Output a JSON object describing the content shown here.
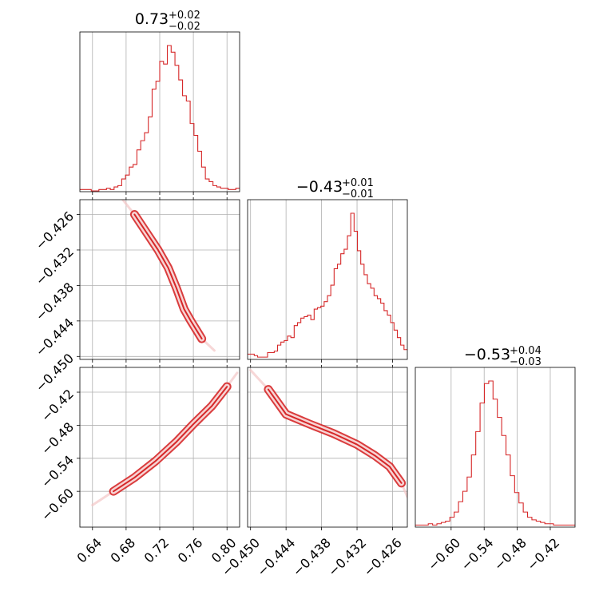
{
  "chart_data": {
    "type": "corner",
    "color": "#d62728",
    "grid": true,
    "parameters": [
      {
        "title": {
          "median": "0.73",
          "plus": "+0.02",
          "minus": "−0.02"
        }
      },
      {
        "title": {
          "median": "−0.43",
          "plus": "+0.01",
          "minus": "−0.01"
        }
      },
      {
        "title": {
          "median": "−0.53",
          "plus": "+0.04",
          "minus": "−0.03"
        }
      }
    ],
    "axes": {
      "x0": {
        "range": [
          0.625,
          0.815
        ],
        "ticks": [
          0.64,
          0.68,
          0.72,
          0.76,
          0.8
        ],
        "tick_labels": [
          "0.64",
          "0.68",
          "0.72",
          "0.76",
          "0.80"
        ]
      },
      "x1": {
        "range": [
          -0.4505,
          -0.4235
        ],
        "ticks": [
          -0.45,
          -0.444,
          -0.438,
          -0.432,
          -0.426
        ],
        "tick_labels": [
          "−0.450",
          "−0.444",
          "−0.438",
          "−0.432",
          "−0.426"
        ]
      },
      "x2": {
        "range": [
          -0.665,
          -0.375
        ],
        "ticks": [
          -0.6,
          -0.54,
          -0.48,
          -0.42
        ],
        "tick_labels": [
          "−0.60",
          "−0.54",
          "−0.48",
          "−0.42"
        ]
      },
      "y1": {
        "range": [
          -0.4505,
          -0.4235
        ],
        "ticks": [
          -0.426,
          -0.432,
          -0.438,
          -0.444,
          -0.45
        ],
        "tick_labels": [
          "−0.426",
          "−0.432",
          "−0.438",
          "−0.444",
          "−0.450"
        ]
      },
      "y2": {
        "range": [
          -0.665,
          -0.375
        ],
        "ticks": [
          -0.42,
          -0.48,
          -0.54,
          -0.6
        ],
        "tick_labels": [
          "−0.42",
          "−0.48",
          "−0.54",
          "−0.60"
        ]
      }
    },
    "histograms": [
      {
        "param": 0,
        "bins": [
          0.625,
          0.815
        ],
        "counts": [
          1,
          1,
          1,
          0,
          0,
          1,
          1,
          2,
          1,
          3,
          4,
          9,
          12,
          18,
          20,
          31,
          38,
          44,
          56,
          77,
          83,
          98,
          96,
          110,
          105,
          95,
          84,
          72,
          68,
          51,
          42,
          30,
          18,
          9,
          7,
          4,
          3,
          2,
          2,
          1,
          1,
          2
        ]
      },
      {
        "param": 1,
        "bins": [
          -0.4505,
          -0.4235
        ],
        "counts": [
          3,
          3,
          2,
          1,
          1,
          1,
          4,
          4,
          5,
          9,
          11,
          12,
          15,
          14,
          22,
          24,
          27,
          28,
          29,
          26,
          33,
          34,
          35,
          38,
          42,
          49,
          60,
          63,
          70,
          73,
          82,
          97,
          85,
          72,
          63,
          56,
          50,
          47,
          42,
          40,
          37,
          32,
          29,
          24,
          19,
          14,
          9,
          6
        ]
      },
      {
        "param": 2,
        "bins": [
          -0.665,
          -0.375
        ],
        "counts": [
          1,
          1,
          1,
          2,
          1,
          2,
          3,
          4,
          7,
          11,
          19,
          27,
          38,
          55,
          73,
          95,
          110,
          112,
          98,
          84,
          70,
          55,
          39,
          26,
          18,
          11,
          7,
          5,
          4,
          3,
          2,
          2,
          1,
          1,
          1,
          1,
          1
        ]
      }
    ],
    "pairs": [
      {
        "x_param": 0,
        "y_param": 1,
        "ridge": [
          [
            0.676,
            -0.4235
          ],
          [
            0.69,
            -0.426
          ],
          [
            0.704,
            -0.429
          ],
          [
            0.718,
            -0.432
          ],
          [
            0.73,
            -0.435
          ],
          [
            0.74,
            -0.4385
          ],
          [
            0.749,
            -0.442
          ],
          [
            0.757,
            -0.444
          ],
          [
            0.77,
            -0.447
          ],
          [
            0.785,
            -0.449
          ]
        ]
      },
      {
        "x_param": 0,
        "y_param": 2,
        "ridge": [
          [
            0.64,
            -0.625
          ],
          [
            0.665,
            -0.6
          ],
          [
            0.69,
            -0.575
          ],
          [
            0.715,
            -0.545
          ],
          [
            0.74,
            -0.51
          ],
          [
            0.76,
            -0.478
          ],
          [
            0.782,
            -0.445
          ],
          [
            0.8,
            -0.41
          ],
          [
            0.812,
            -0.385
          ]
        ]
      },
      {
        "x_param": 1,
        "y_param": 2,
        "ridge": [
          [
            -0.45,
            -0.38
          ],
          [
            -0.447,
            -0.415
          ],
          [
            -0.444,
            -0.46
          ],
          [
            -0.44,
            -0.478
          ],
          [
            -0.436,
            -0.495
          ],
          [
            -0.432,
            -0.515
          ],
          [
            -0.429,
            -0.535
          ],
          [
            -0.4265,
            -0.555
          ],
          [
            -0.4245,
            -0.585
          ],
          [
            -0.4235,
            -0.61
          ]
        ]
      }
    ]
  }
}
